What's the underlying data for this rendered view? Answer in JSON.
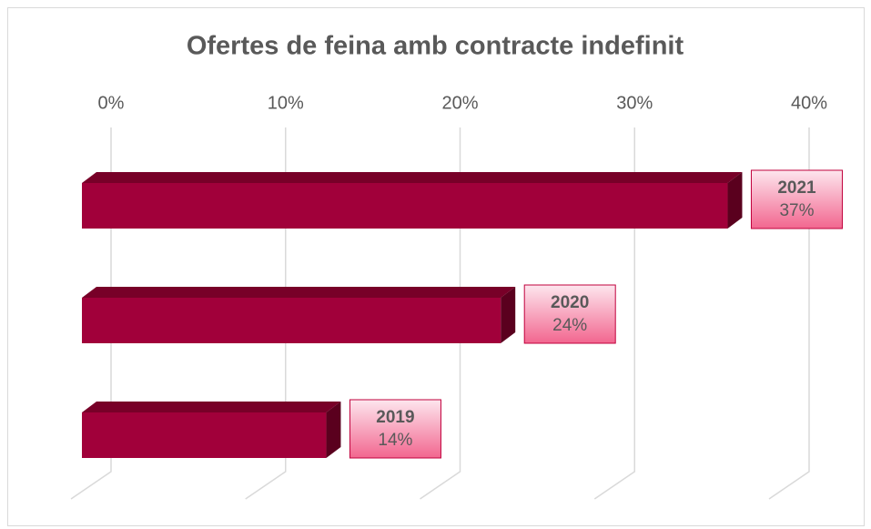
{
  "chart_data": {
    "type": "bar3d_horizontal",
    "title": "Ofertes de feina amb contracte indefinit",
    "categories": [
      "2021",
      "2020",
      "2019"
    ],
    "values": [
      37,
      24,
      14
    ],
    "value_labels": [
      "37%",
      "24%",
      "14%"
    ],
    "color": "#a1003a",
    "xlim": [
      0,
      40
    ],
    "xticks": [
      {
        "value": 0,
        "label": "0%"
      },
      {
        "value": 10,
        "label": "10%"
      },
      {
        "value": 20,
        "label": "20%"
      },
      {
        "value": 30,
        "label": "30%"
      },
      {
        "value": 40,
        "label": "40%"
      }
    ],
    "grid": true
  }
}
